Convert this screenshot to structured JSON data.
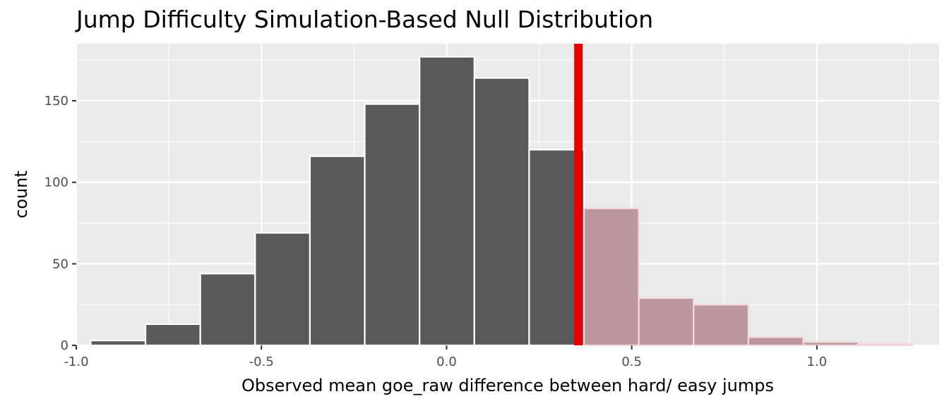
{
  "chart_data": {
    "type": "bar",
    "subtype": "histogram",
    "title": "Jump Difficulty Simulation-Based Null Distribution",
    "xlabel": "Observed mean goe_raw difference between hard/ easy jumps",
    "ylabel": "count",
    "xlim": [
      -1.0,
      1.33
    ],
    "ylim": [
      0,
      185
    ],
    "x_ticks": [
      -1.0,
      -0.5,
      0.0,
      0.5,
      1.0
    ],
    "x_tick_labels": [
      "-1.0",
      "-0.5",
      "0.0",
      "0.5",
      "1.0"
    ],
    "y_ticks": [
      0,
      50,
      100,
      150
    ],
    "y_tick_labels": [
      "0",
      "50",
      "100",
      "150"
    ],
    "bin_width": 0.148,
    "bins": [
      {
        "x": -0.887,
        "count": 3,
        "shaded": false
      },
      {
        "x": -0.739,
        "count": 13,
        "shaded": false
      },
      {
        "x": -0.591,
        "count": 44,
        "shaded": false
      },
      {
        "x": -0.443,
        "count": 69,
        "shaded": false
      },
      {
        "x": -0.295,
        "count": 116,
        "shaded": false
      },
      {
        "x": -0.147,
        "count": 148,
        "shaded": false
      },
      {
        "x": 0.001,
        "count": 177,
        "shaded": false
      },
      {
        "x": 0.149,
        "count": 164,
        "shaded": false
      },
      {
        "x": 0.297,
        "count": 120,
        "shaded": false
      },
      {
        "x": 0.445,
        "count": 84,
        "shaded": true
      },
      {
        "x": 0.593,
        "count": 29,
        "shaded": true
      },
      {
        "x": 0.741,
        "count": 25,
        "shaded": true
      },
      {
        "x": 0.889,
        "count": 5,
        "shaded": true
      },
      {
        "x": 1.037,
        "count": 2,
        "shaded": true
      },
      {
        "x": 1.185,
        "count": 1,
        "shaded": true
      }
    ],
    "observed_statistic": 0.356,
    "grid": true,
    "colors": {
      "panel": "#ebebeb",
      "grid": "#ffffff",
      "bar": "#595959",
      "shaded_bar": "#bc979d",
      "bar_outline": "#ffffff",
      "shaded_outline": "#f4d9dd",
      "observed_line": "#e60000"
    }
  }
}
